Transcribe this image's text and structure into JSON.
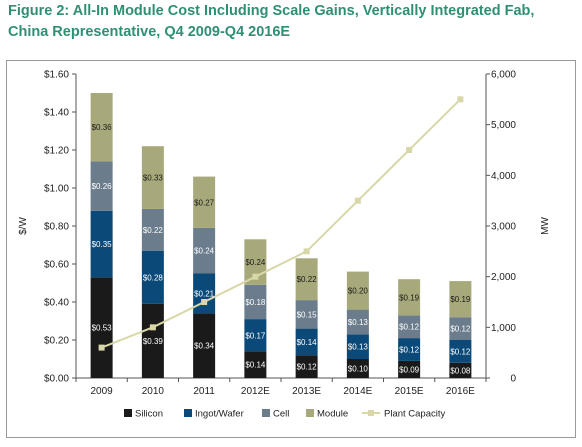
{
  "title": "Figure 2: All-In Module Cost Including Scale Gains, Vertically Integrated Fab, China Representative, Q4 2009-Q4 2016E",
  "colors": {
    "title": "#2f8f74",
    "silicon": "#1a1a1a",
    "ingot_wafer": "#0b4a78",
    "cell": "#6b7d8c",
    "module": "#a8a97a",
    "plant_capacity": "#d9d7a8"
  },
  "chart_data": {
    "type": "bar",
    "stacked": true,
    "categories": [
      "2009",
      "2010",
      "2011",
      "2012E",
      "2013E",
      "2014E",
      "2015E",
      "2016E"
    ],
    "series": [
      {
        "name": "Silicon",
        "axis": "left",
        "values": [
          0.53,
          0.39,
          0.34,
          0.14,
          0.12,
          0.1,
          0.09,
          0.08
        ],
        "labels": [
          "$0.53",
          "$0.39",
          "$0.34",
          "$0.14",
          "$0.12",
          "$0.10",
          "$0.09",
          "$0.08"
        ]
      },
      {
        "name": "Ingot/Wafer",
        "axis": "left",
        "values": [
          0.35,
          0.28,
          0.21,
          0.17,
          0.14,
          0.13,
          0.12,
          0.12
        ],
        "labels": [
          "$0.35",
          "$0.28",
          "$0.21",
          "$0.17",
          "$0.14",
          "$0.13",
          "$0.12",
          "$0.12"
        ]
      },
      {
        "name": "Cell",
        "axis": "left",
        "values": [
          0.26,
          0.22,
          0.24,
          0.18,
          0.15,
          0.13,
          0.12,
          0.12
        ],
        "labels": [
          "$0.26",
          "$0.22",
          "$0.24",
          "$0.18",
          "$0.15",
          "$0.13",
          "$0.12",
          "$0.12"
        ]
      },
      {
        "name": "Module",
        "axis": "left",
        "values": [
          0.36,
          0.33,
          0.27,
          0.24,
          0.22,
          0.2,
          0.19,
          0.19
        ],
        "labels": [
          "$0.36",
          "$0.33",
          "$0.27",
          "$0.24",
          "$0.22",
          "$0.20",
          "$0.19",
          "$0.19"
        ]
      },
      {
        "name": "Plant Capacity",
        "axis": "right",
        "type": "line",
        "values": [
          600,
          1000,
          1500,
          2000,
          2500,
          3500,
          4500,
          5500
        ]
      }
    ],
    "ylabel": "$/W",
    "ylabel_right": "MW",
    "ylim": [
      0,
      1.6
    ],
    "ylim_right": [
      0,
      6000
    ],
    "yticks": [
      "$0.00",
      "$0.20",
      "$0.40",
      "$0.60",
      "$0.80",
      "$1.00",
      "$1.20",
      "$1.40",
      "$1.60"
    ],
    "yticks_right": [
      "0",
      "1,000",
      "2,000",
      "3,000",
      "4,000",
      "5,000",
      "6,000"
    ],
    "legend_position": "bottom",
    "grid": false
  }
}
